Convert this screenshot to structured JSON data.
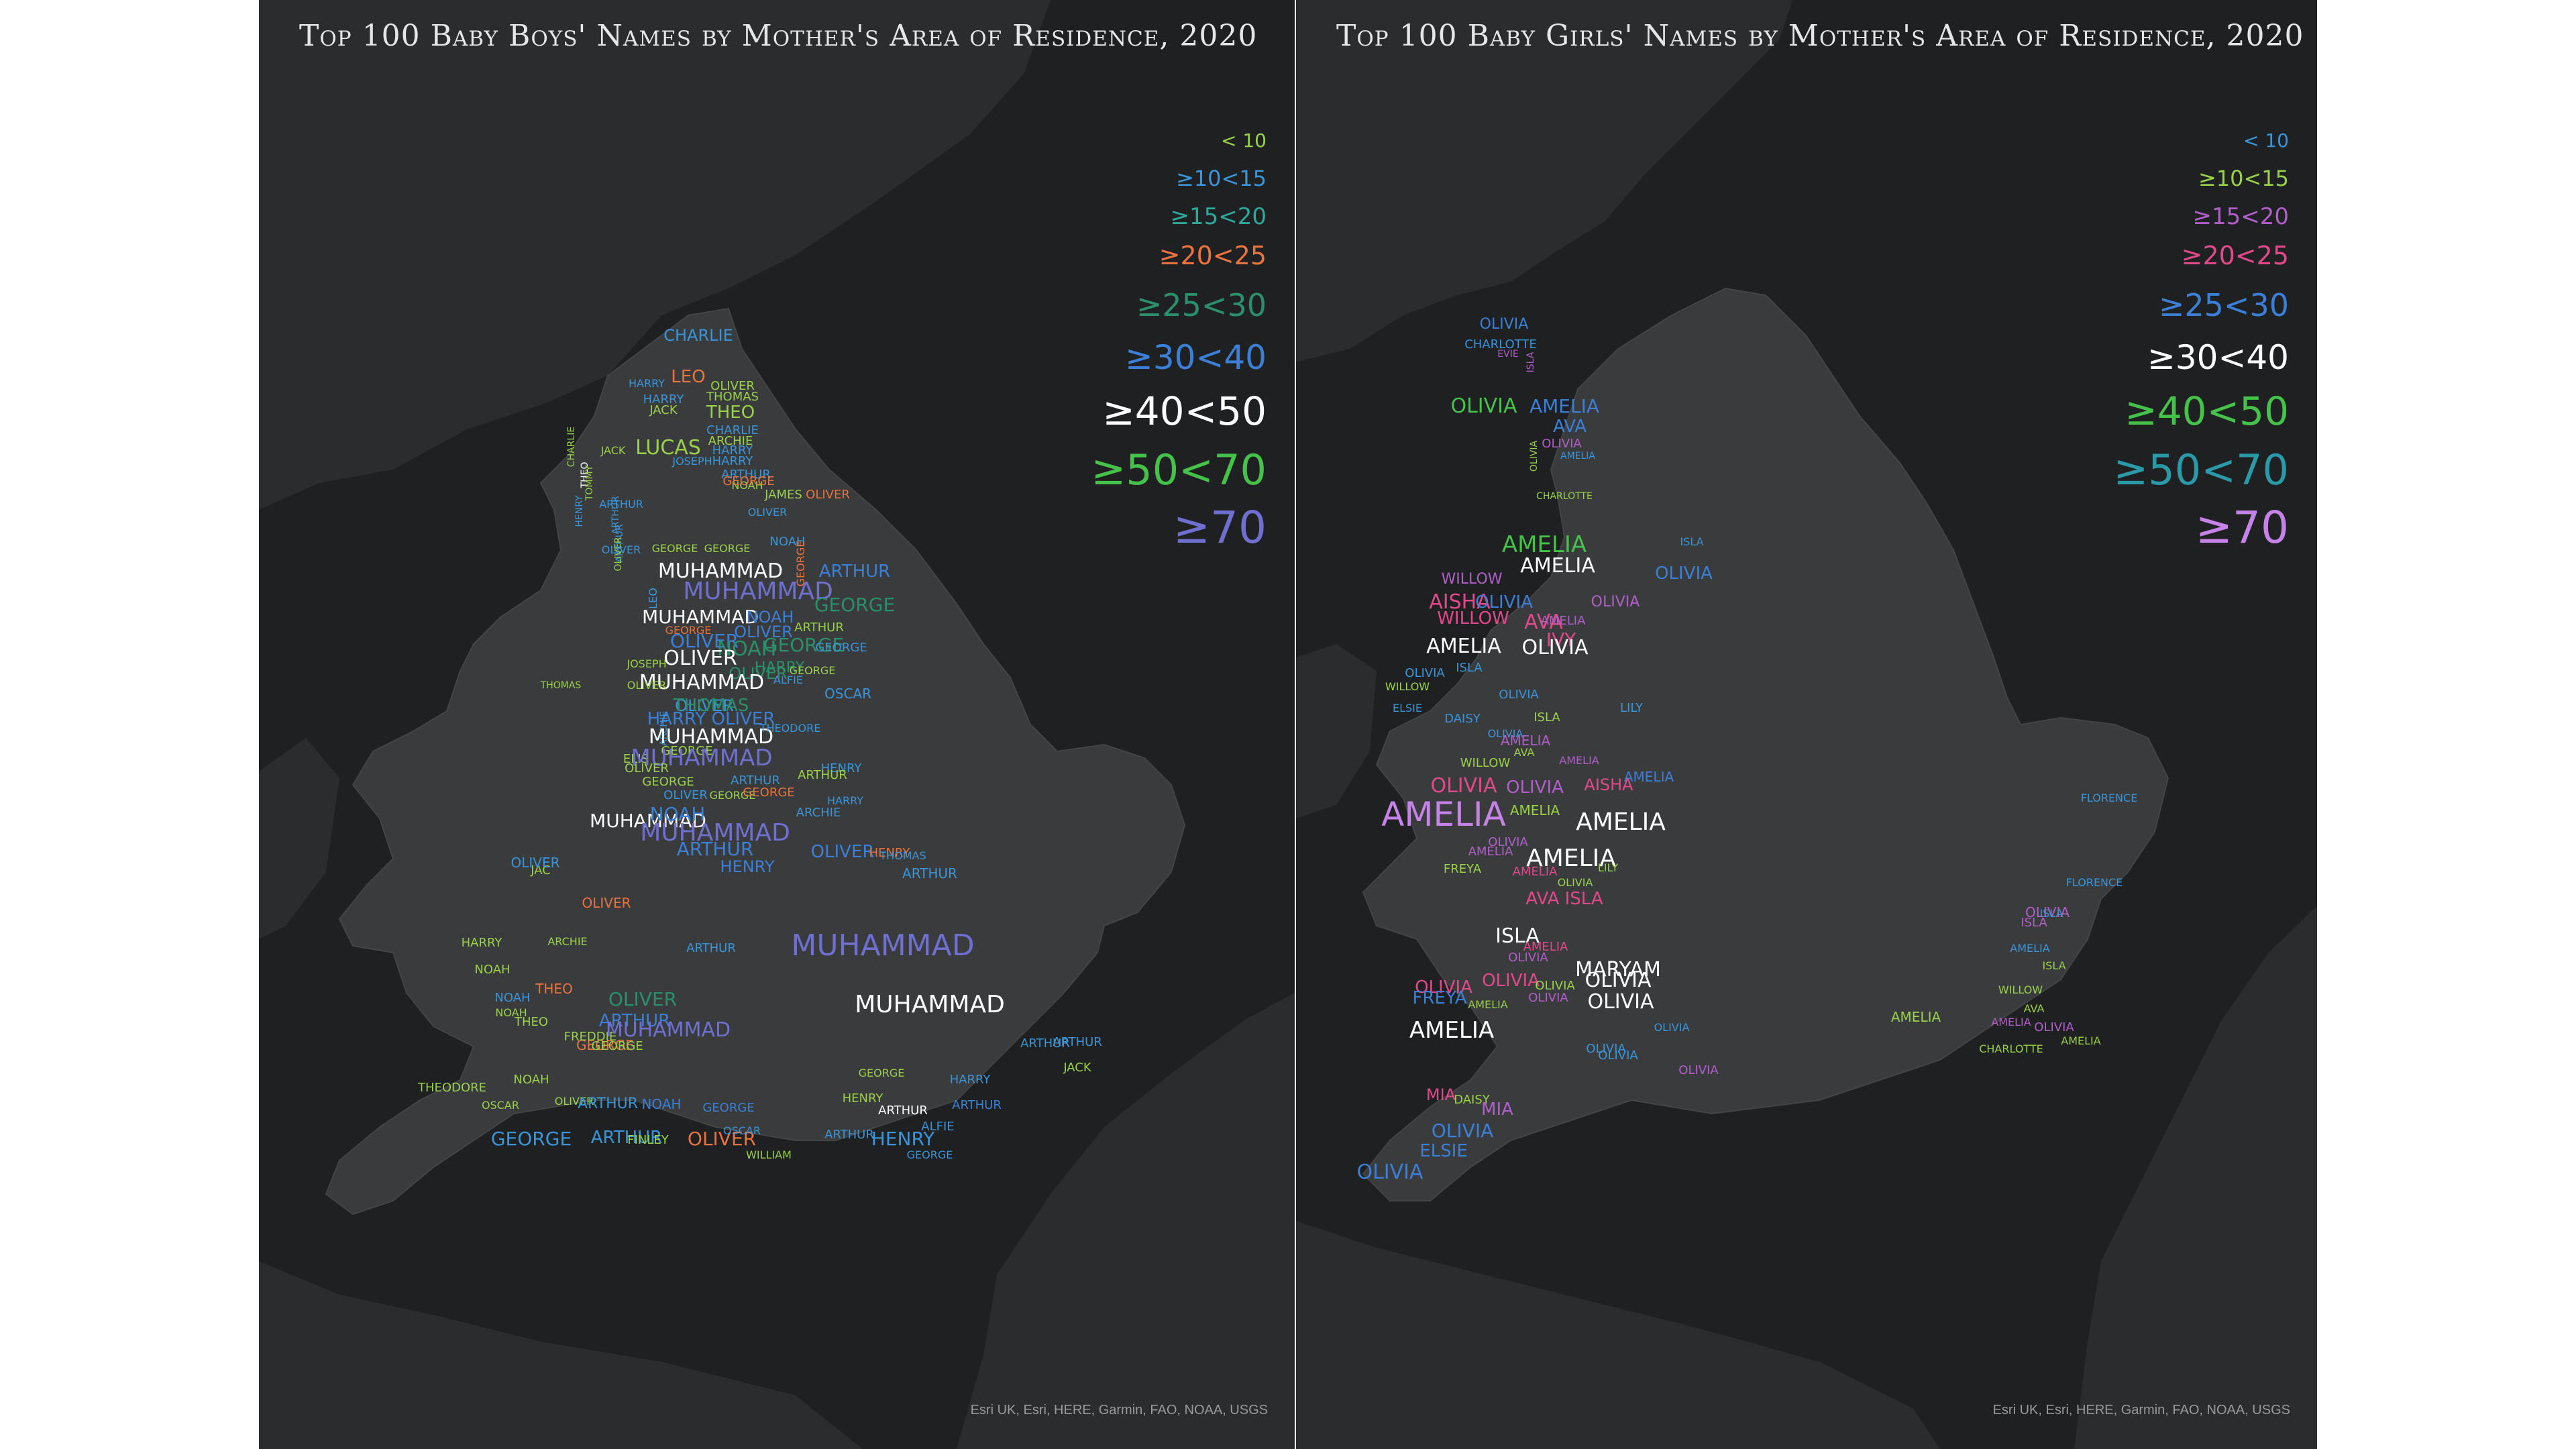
{
  "boys_map": {
    "title": "Top 100 Baby Boys' Names by Mother's Area of Residence, 2020",
    "attribution": "Esri UK, Esri, HERE, Garmin, FAO, NOAA, USGS",
    "legend": [
      {
        "label": "< 10",
        "color": "#9ad14a"
      },
      {
        "label": "≥10<15",
        "color": "#3a95d8"
      },
      {
        "label": "≥15<20",
        "color": "#2fa79a"
      },
      {
        "label": "≥20<25",
        "color": "#e8733e"
      },
      {
        "label": "≥25<30",
        "color": "#2a8f6a"
      },
      {
        "label": "≥30<40",
        "color": "#3b7fd6"
      },
      {
        "label": "≥40<50",
        "color": "#ffffff"
      },
      {
        "label": "≥50<70",
        "color": "#45c24a"
      },
      {
        "label": "≥70",
        "color": "#6f6fd0"
      }
    ],
    "names": [
      {
        "text": "CHARLIE",
        "c": 1
      },
      {
        "text": "LEO",
        "c": 3
      },
      {
        "text": "HARRY",
        "c": 1
      },
      {
        "text": "OLIVER",
        "c": 0
      },
      {
        "text": "THOMAS",
        "c": 0
      },
      {
        "text": "HARRY",
        "c": 1
      },
      {
        "text": "JACK",
        "c": 0
      },
      {
        "text": "THEO",
        "c": 0
      },
      {
        "text": "CHARLIE",
        "c": 1
      },
      {
        "text": "ARCHIE",
        "c": 0
      },
      {
        "text": "CHARLIE",
        "c": 0
      },
      {
        "text": "HARRY",
        "c": 1
      },
      {
        "text": "JACK",
        "c": 0
      },
      {
        "text": "LUCAS",
        "c": 0
      },
      {
        "text": "THEO",
        "c": 6
      },
      {
        "text": "HARRY",
        "c": 1
      },
      {
        "text": "JOSEPH",
        "c": 1
      },
      {
        "text": "ARTHUR",
        "c": 1
      },
      {
        "text": "NOAH",
        "c": 0
      },
      {
        "text": "TOMMY",
        "c": 0
      },
      {
        "text": "ARTHUR",
        "c": 1
      },
      {
        "text": "HENRY",
        "c": 1
      },
      {
        "text": "GEORGE",
        "c": 3
      },
      {
        "text": "JAMES",
        "c": 0
      },
      {
        "text": "OLIVER",
        "c": 3
      },
      {
        "text": "OLIVER",
        "c": 1
      },
      {
        "text": "ARTHUR",
        "c": 1
      },
      {
        "text": "ARTHUR",
        "c": 1
      },
      {
        "text": "NOAH",
        "c": 1
      },
      {
        "text": "OLIVER",
        "c": 0
      },
      {
        "text": "OLIVER",
        "c": 1
      },
      {
        "text": "GEORGE",
        "c": 0
      },
      {
        "text": "GEORGE",
        "c": 0
      },
      {
        "text": "GEORGE",
        "c": 3
      },
      {
        "text": "ARTHUR",
        "c": 5
      },
      {
        "text": "MUHAMMAD",
        "c": 6
      },
      {
        "text": "MUHAMMAD",
        "c": 8
      },
      {
        "text": "GEORGE",
        "c": 4
      },
      {
        "text": "LEO",
        "c": 1
      },
      {
        "text": "MUHAMMAD",
        "c": 6
      },
      {
        "text": "NOAH",
        "c": 5
      },
      {
        "text": "OLIVER",
        "c": 5
      },
      {
        "text": "GEORGE",
        "c": 3
      },
      {
        "text": "ARTHUR",
        "c": 0
      },
      {
        "text": "OLIVER",
        "c": 5
      },
      {
        "text": "GEORGE",
        "c": 4
      },
      {
        "text": "NOAH",
        "c": 4
      },
      {
        "text": "GEORGE",
        "c": 1
      },
      {
        "text": "OLIVER",
        "c": 6
      },
      {
        "text": "HARRY",
        "c": 4
      },
      {
        "text": "GEORGE",
        "c": 0
      },
      {
        "text": "OLIVER",
        "c": 4
      },
      {
        "text": "JOSEPH",
        "c": 0
      },
      {
        "text": "MUHAMMAD",
        "c": 6
      },
      {
        "text": "ALFIE",
        "c": 1
      },
      {
        "text": "OLIVER",
        "c": 1
      },
      {
        "text": "OSCAR",
        "c": 1
      },
      {
        "text": "OLIVER",
        "c": 0
      },
      {
        "text": "THOMAS",
        "c": 0
      },
      {
        "text": "HARRY OLIVER",
        "c": 5
      },
      {
        "text": "THOMAS",
        "c": 4
      },
      {
        "text": "ARCHIE",
        "c": 1
      },
      {
        "text": "MUHAMMAD",
        "c": 6
      },
      {
        "text": "GEORGE",
        "c": 0
      },
      {
        "text": "THEODORE",
        "c": 1
      },
      {
        "text": "ELIS",
        "c": 0
      },
      {
        "text": "MUHAMMAD",
        "c": 8
      },
      {
        "text": "OLIVER",
        "c": 0
      },
      {
        "text": "GEORGE",
        "c": 0
      },
      {
        "text": "HENRY",
        "c": 1
      },
      {
        "text": "ARTHUR",
        "c": 0
      },
      {
        "text": "ARTHUR",
        "c": 1
      },
      {
        "text": "GEORGE",
        "c": 0
      },
      {
        "text": "OLIVER",
        "c": 1
      },
      {
        "text": "GEORGE",
        "c": 3
      },
      {
        "text": "MUHAMMAD",
        "c": 6
      },
      {
        "text": "NOAH",
        "c": 5
      },
      {
        "text": "ARCHIE",
        "c": 1
      },
      {
        "text": "HARRY",
        "c": 1
      },
      {
        "text": "MUHAMMAD",
        "c": 8
      },
      {
        "text": "ARTHUR",
        "c": 5
      },
      {
        "text": "OLIVER",
        "c": 5
      },
      {
        "text": "HENRY",
        "c": 3
      },
      {
        "text": "THOMAS",
        "c": 1
      },
      {
        "text": "JAC",
        "c": 0
      },
      {
        "text": "OLIVER",
        "c": 1
      },
      {
        "text": "HENRY",
        "c": 5
      },
      {
        "text": "ARTHUR",
        "c": 1
      },
      {
        "text": "OLIVER",
        "c": 3
      },
      {
        "text": "HARRY",
        "c": 0
      },
      {
        "text": "ARCHIE",
        "c": 0
      },
      {
        "text": "MUHAMMAD",
        "c": 8
      },
      {
        "text": "ARTHUR",
        "c": 1
      },
      {
        "text": "NOAH",
        "c": 0
      },
      {
        "text": "THEO",
        "c": 3
      },
      {
        "text": "NOAH",
        "c": 1
      },
      {
        "text": "OLIVER",
        "c": 4
      },
      {
        "text": "ARTHUR",
        "c": 5
      },
      {
        "text": "NOAH",
        "c": 0
      },
      {
        "text": "THEO",
        "c": 0
      },
      {
        "text": "GEORGE",
        "c": 3
      },
      {
        "text": "FREDDIE",
        "c": 0
      },
      {
        "text": "MUHAMMAD",
        "c": 8
      },
      {
        "text": "MUHAMMAD",
        "c": 6
      },
      {
        "text": "GEORGE",
        "c": 0
      },
      {
        "text": "ARTHUR",
        "c": 1
      },
      {
        "text": "ARTHUR",
        "c": 1
      },
      {
        "text": "THEODORE",
        "c": 0
      },
      {
        "text": "HARRY",
        "c": 1
      },
      {
        "text": "GEORGE",
        "c": 0
      },
      {
        "text": "HENRY",
        "c": 0
      },
      {
        "text": "NOAH",
        "c": 0
      },
      {
        "text": "OSCAR",
        "c": 0
      },
      {
        "text": "OLIVER",
        "c": 0
      },
      {
        "text": "GEORGE",
        "c": 5
      },
      {
        "text": "NOAH",
        "c": 5
      },
      {
        "text": "ARTHUR",
        "c": 5
      },
      {
        "text": "ARTHUR",
        "c": 6
      },
      {
        "text": "ARTHUR",
        "c": 1
      },
      {
        "text": "ARTHUR",
        "c": 1
      },
      {
        "text": "GEORGE",
        "c": 1
      },
      {
        "text": "OLIVER",
        "c": 3
      },
      {
        "text": "HENRY",
        "c": 1
      },
      {
        "text": "FINLEY",
        "c": 0
      },
      {
        "text": "WILLIAM",
        "c": 0
      },
      {
        "text": "ARTHUR",
        "c": 1
      },
      {
        "text": "ALFIE",
        "c": 1
      },
      {
        "text": "OSCAR",
        "c": 1
      },
      {
        "text": "GEORGE",
        "c": 1
      },
      {
        "text": "JACK",
        "c": 0
      }
    ]
  },
  "girls_map": {
    "title": "Top 100 Baby Girls' Names by Mother's Area of Residence, 2020",
    "attribution": "Esri UK, Esri, HERE, Garmin, FAO, NOAA, USGS",
    "legend": [
      {
        "label": "< 10",
        "color": "#3a95d8"
      },
      {
        "label": "≥10<15",
        "color": "#9ad14a"
      },
      {
        "label": "≥15<20",
        "color": "#b05fc8"
      },
      {
        "label": "≥20<25",
        "color": "#e04a8a"
      },
      {
        "label": "≥25<30",
        "color": "#3b7fd6"
      },
      {
        "label": "≥30<40",
        "color": "#ffffff"
      },
      {
        "label": "≥40<50",
        "color": "#45c24a"
      },
      {
        "label": "≥50<70",
        "color": "#2a9aa8"
      },
      {
        "label": "≥70",
        "color": "#c583e8"
      }
    ],
    "names": [
      {
        "text": "OLIVIA",
        "c": 4
      },
      {
        "text": "CHARLOTTE",
        "c": 0
      },
      {
        "text": "EVIE",
        "c": 2
      },
      {
        "text": "ISLA",
        "c": 2
      },
      {
        "text": "OLIVIA",
        "c": 6
      },
      {
        "text": "AMELIA",
        "c": 4
      },
      {
        "text": "AVA",
        "c": 4
      },
      {
        "text": "OLIVIA",
        "c": 2
      },
      {
        "text": "OLIVIA",
        "c": 1
      },
      {
        "text": "AMELIA",
        "c": 0
      },
      {
        "text": "CHARLOTTE",
        "c": 1
      },
      {
        "text": "AMELIA",
        "c": 6
      },
      {
        "text": "ISLA",
        "c": 0
      },
      {
        "text": "AMELIA",
        "c": 5
      },
      {
        "text": "OLIVIA",
        "c": 4
      },
      {
        "text": "WILLOW",
        "c": 2
      },
      {
        "text": "AISHA",
        "c": 3
      },
      {
        "text": "WILLOW",
        "c": 3
      },
      {
        "text": "AVA",
        "c": 3
      },
      {
        "text": "OLIVIA",
        "c": 4
      },
      {
        "text": "OLIVIA",
        "c": 2
      },
      {
        "text": "AMELIA",
        "c": 2
      },
      {
        "text": "AMELIA",
        "c": 5
      },
      {
        "text": "IVY",
        "c": 3
      },
      {
        "text": "OLIVIA",
        "c": 5
      },
      {
        "text": "ISLA",
        "c": 0
      },
      {
        "text": "OLIVIA",
        "c": 0
      },
      {
        "text": "WILLOW",
        "c": 1
      },
      {
        "text": "ELSIE",
        "c": 0
      },
      {
        "text": "OLIVIA",
        "c": 0
      },
      {
        "text": "LILY",
        "c": 0
      },
      {
        "text": "DAISY",
        "c": 0
      },
      {
        "text": "ISLA",
        "c": 1
      },
      {
        "text": "AMELIA",
        "c": 2
      },
      {
        "text": "OLIVIA",
        "c": 0
      },
      {
        "text": "AVA",
        "c": 1
      },
      {
        "text": "WILLOW",
        "c": 1
      },
      {
        "text": "AMELIA",
        "c": 2
      },
      {
        "text": "OLIVIA",
        "c": 2
      },
      {
        "text": "AMELIA",
        "c": 4
      },
      {
        "text": "AISHA",
        "c": 3
      },
      {
        "text": "OLIVIA",
        "c": 3
      },
      {
        "text": "AMELIA",
        "c": 8
      },
      {
        "text": "AMELIA",
        "c": 5
      },
      {
        "text": "AMELIA",
        "c": 1
      },
      {
        "text": "OLIVIA",
        "c": 2
      },
      {
        "text": "AMELIA",
        "c": 5
      },
      {
        "text": "AMELIA",
        "c": 2
      },
      {
        "text": "FREYA",
        "c": 1
      },
      {
        "text": "AMELIA",
        "c": 3
      },
      {
        "text": "LILY",
        "c": 1
      },
      {
        "text": "OLIVIA",
        "c": 1
      },
      {
        "text": "AVA ISLA",
        "c": 3
      },
      {
        "text": "ISLA",
        "c": 5
      },
      {
        "text": "AMELIA",
        "c": 3
      },
      {
        "text": "OLIVIA",
        "c": 2
      },
      {
        "text": "MARYAM",
        "c": 5
      },
      {
        "text": "OLIVIA",
        "c": 5
      },
      {
        "text": "OLIVIA",
        "c": 5
      },
      {
        "text": "OLIVIA",
        "c": 3
      },
      {
        "text": "OLIVIA",
        "c": 3
      },
      {
        "text": "FREYA",
        "c": 4
      },
      {
        "text": "AMELIA",
        "c": 5
      },
      {
        "text": "OLIVIA",
        "c": 1
      },
      {
        "text": "OLIVIA",
        "c": 2
      },
      {
        "text": "MIA",
        "c": 3
      },
      {
        "text": "OLIVIA",
        "c": 4
      },
      {
        "text": "ELSIE",
        "c": 4
      },
      {
        "text": "OLIVIA",
        "c": 4
      },
      {
        "text": "AMELIA",
        "c": 1
      },
      {
        "text": "FLORENCE",
        "c": 0
      },
      {
        "text": "FLORENCE",
        "c": 0
      },
      {
        "text": "OLIVIA",
        "c": 2
      },
      {
        "text": "ISLA",
        "c": 2
      },
      {
        "text": "AMELIA",
        "c": 0
      },
      {
        "text": "WILLOW",
        "c": 1
      },
      {
        "text": "ISLA",
        "c": 1
      },
      {
        "text": "OLIVIA",
        "c": 2
      },
      {
        "text": "AVA",
        "c": 1
      },
      {
        "text": "DAISY",
        "c": 1
      },
      {
        "text": "CHARLOTTE",
        "c": 1
      },
      {
        "text": "AMELIA",
        "c": 1
      },
      {
        "text": "OLIVIA",
        "c": 0
      },
      {
        "text": "MIA",
        "c": 2
      },
      {
        "text": "ISLA",
        "c": 0
      },
      {
        "text": "AMELIA",
        "c": 1
      },
      {
        "text": "OLIVIA",
        "c": 0
      },
      {
        "text": "OLIVIA",
        "c": 0
      },
      {
        "text": "AMELIA",
        "c": 2
      },
      {
        "text": "OLIVIA",
        "c": 2
      }
    ]
  }
}
